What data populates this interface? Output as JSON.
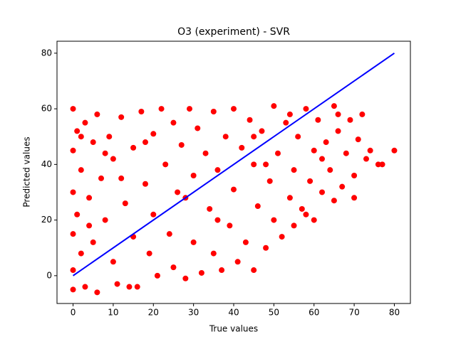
{
  "chart_data": {
    "type": "scatter",
    "title": "O3 (experiment) - SVR",
    "x_label": "True values",
    "y_label": "Predicted values",
    "xlim": [
      -4,
      84
    ],
    "ylim": [
      -10,
      84.3
    ],
    "xticks": [
      0,
      10,
      20,
      30,
      40,
      50,
      60,
      70,
      80
    ],
    "yticks": [
      0,
      20,
      40,
      60,
      80
    ],
    "series": [
      {
        "type": "scatter",
        "color": "#ff0000",
        "x": [
          0,
          0,
          0,
          0,
          0,
          0,
          1,
          1,
          2,
          2,
          3,
          3,
          4,
          5,
          5,
          6,
          6,
          7,
          8,
          9,
          10,
          10,
          11,
          12,
          13,
          14,
          15,
          15,
          16,
          17,
          18,
          19,
          20,
          20,
          21,
          22,
          23,
          24,
          25,
          25,
          26,
          27,
          28,
          29,
          30,
          30,
          31,
          32,
          33,
          34,
          35,
          35,
          36,
          37,
          38,
          39,
          40,
          40,
          41,
          42,
          43,
          44,
          45,
          45,
          46,
          47,
          48,
          49,
          50,
          50,
          51,
          52,
          53,
          54,
          55,
          55,
          56,
          57,
          58,
          59,
          60,
          60,
          61,
          62,
          63,
          64,
          65,
          65,
          66,
          67,
          68,
          69,
          70,
          71,
          72,
          73,
          74,
          76,
          77,
          80,
          66,
          58,
          45,
          12,
          8,
          28,
          36,
          18,
          4,
          2,
          62,
          70,
          54,
          48
        ],
        "y": [
          60,
          45,
          30,
          15,
          2,
          -5,
          52,
          22,
          38,
          8,
          55,
          -4,
          28,
          48,
          12,
          -6,
          58,
          35,
          20,
          50,
          5,
          42,
          -3,
          57,
          26,
          -4,
          46,
          14,
          -4,
          59,
          33,
          8,
          51,
          22,
          0,
          60,
          40,
          15,
          55,
          3,
          30,
          47,
          -1,
          60,
          36,
          12,
          53,
          1,
          44,
          24,
          59,
          8,
          38,
          2,
          50,
          18,
          60,
          31,
          5,
          46,
          12,
          56,
          40,
          2,
          25,
          52,
          10,
          34,
          61,
          20,
          44,
          14,
          55,
          28,
          38,
          18,
          50,
          24,
          60,
          34,
          45,
          20,
          56,
          30,
          48,
          38,
          61,
          27,
          52,
          32,
          44,
          56,
          36,
          49,
          58,
          42,
          45,
          40,
          40,
          45,
          58,
          22,
          50,
          35,
          44,
          28,
          20,
          48,
          18,
          50,
          42,
          28,
          58,
          40
        ]
      },
      {
        "type": "line",
        "color": "#0000ff",
        "x": [
          0,
          80
        ],
        "y": [
          0,
          80
        ]
      }
    ]
  }
}
